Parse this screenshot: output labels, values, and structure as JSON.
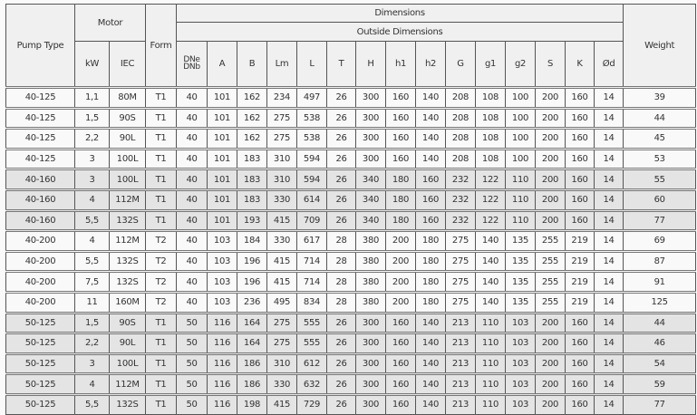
{
  "headers": {
    "pump_type": "Pump Type",
    "motor": "Motor",
    "form": "Form",
    "dimensions": "Dimensions",
    "outside_dimensions": "Outside Dimensions",
    "weight": "Weight",
    "kw": "kW",
    "iec": "IEC",
    "dne": "DNe",
    "dnb": "DNb",
    "dim_cols": [
      "A",
      "B",
      "Lm",
      "L",
      "T",
      "H",
      "h1",
      "h2",
      "G",
      "g1",
      "g2",
      "S",
      "K",
      "Ød"
    ]
  },
  "row_colors": {
    "white": "#f9f9f9",
    "grey": "#e4e4e4"
  },
  "rows": [
    {
      "shade": "white",
      "cells": [
        "40-125",
        "1,1",
        "80M",
        "T1",
        "40",
        "101",
        "162",
        "234",
        "497",
        "26",
        "300",
        "160",
        "140",
        "208",
        "108",
        "100",
        "200",
        "160",
        "14",
        "39"
      ]
    },
    {
      "shade": "white",
      "cells": [
        "40-125",
        "1,5",
        "90S",
        "T1",
        "40",
        "101",
        "162",
        "275",
        "538",
        "26",
        "300",
        "160",
        "140",
        "208",
        "108",
        "100",
        "200",
        "160",
        "14",
        "44"
      ]
    },
    {
      "shade": "white",
      "cells": [
        "40-125",
        "2,2",
        "90L",
        "T1",
        "40",
        "101",
        "162",
        "275",
        "538",
        "26",
        "300",
        "160",
        "140",
        "208",
        "108",
        "100",
        "200",
        "160",
        "14",
        "45"
      ]
    },
    {
      "shade": "white",
      "cells": [
        "40-125",
        "3",
        "100L",
        "T1",
        "40",
        "101",
        "183",
        "310",
        "594",
        "26",
        "300",
        "160",
        "140",
        "208",
        "108",
        "100",
        "200",
        "160",
        "14",
        "53"
      ]
    },
    {
      "shade": "grey",
      "cells": [
        "40-160",
        "3",
        "100L",
        "T1",
        "40",
        "101",
        "183",
        "310",
        "594",
        "26",
        "340",
        "180",
        "160",
        "232",
        "122",
        "110",
        "200",
        "160",
        "14",
        "55"
      ]
    },
    {
      "shade": "grey",
      "cells": [
        "40-160",
        "4",
        "112M",
        "T1",
        "40",
        "101",
        "183",
        "330",
        "614",
        "26",
        "340",
        "180",
        "160",
        "232",
        "122",
        "110",
        "200",
        "160",
        "14",
        "60"
      ]
    },
    {
      "shade": "grey",
      "cells": [
        "40-160",
        "5,5",
        "132S",
        "T1",
        "40",
        "101",
        "193",
        "415",
        "709",
        "26",
        "340",
        "180",
        "160",
        "232",
        "122",
        "110",
        "200",
        "160",
        "14",
        "77"
      ]
    },
    {
      "shade": "white",
      "cells": [
        "40-200",
        "4",
        "112M",
        "T2",
        "40",
        "103",
        "184",
        "330",
        "617",
        "28",
        "380",
        "200",
        "180",
        "275",
        "140",
        "135",
        "255",
        "219",
        "14",
        "69"
      ]
    },
    {
      "shade": "white",
      "cells": [
        "40-200",
        "5,5",
        "132S",
        "T2",
        "40",
        "103",
        "196",
        "415",
        "714",
        "28",
        "380",
        "200",
        "180",
        "275",
        "140",
        "135",
        "255",
        "219",
        "14",
        "87"
      ]
    },
    {
      "shade": "white",
      "cells": [
        "40-200",
        "7,5",
        "132S",
        "T2",
        "40",
        "103",
        "196",
        "415",
        "714",
        "28",
        "380",
        "200",
        "180",
        "275",
        "140",
        "135",
        "255",
        "219",
        "14",
        "91"
      ]
    },
    {
      "shade": "white",
      "cells": [
        "40-200",
        "11",
        "160M",
        "T2",
        "40",
        "103",
        "236",
        "495",
        "834",
        "28",
        "380",
        "200",
        "180",
        "275",
        "140",
        "135",
        "255",
        "219",
        "14",
        "125"
      ]
    },
    {
      "shade": "grey",
      "cells": [
        "50-125",
        "1,5",
        "90S",
        "T1",
        "50",
        "116",
        "164",
        "275",
        "555",
        "26",
        "300",
        "160",
        "140",
        "213",
        "110",
        "103",
        "200",
        "160",
        "14",
        "44"
      ]
    },
    {
      "shade": "grey",
      "cells": [
        "50-125",
        "2,2",
        "90L",
        "T1",
        "50",
        "116",
        "164",
        "275",
        "555",
        "26",
        "300",
        "160",
        "140",
        "213",
        "110",
        "103",
        "200",
        "160",
        "14",
        "46"
      ]
    },
    {
      "shade": "grey",
      "cells": [
        "50-125",
        "3",
        "100L",
        "T1",
        "50",
        "116",
        "186",
        "310",
        "612",
        "26",
        "300",
        "160",
        "140",
        "213",
        "110",
        "103",
        "200",
        "160",
        "14",
        "54"
      ]
    },
    {
      "shade": "grey",
      "cells": [
        "50-125",
        "4",
        "112M",
        "T1",
        "50",
        "116",
        "186",
        "330",
        "632",
        "26",
        "300",
        "160",
        "140",
        "213",
        "110",
        "103",
        "200",
        "160",
        "14",
        "59"
      ]
    },
    {
      "shade": "grey",
      "cells": [
        "50-125",
        "5,5",
        "132S",
        "T1",
        "50",
        "116",
        "198",
        "415",
        "729",
        "26",
        "300",
        "160",
        "140",
        "213",
        "110",
        "103",
        "200",
        "160",
        "14",
        "77"
      ]
    }
  ]
}
